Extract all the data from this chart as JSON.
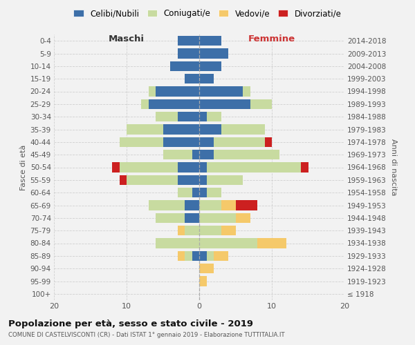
{
  "age_groups": [
    "100+",
    "95-99",
    "90-94",
    "85-89",
    "80-84",
    "75-79",
    "70-74",
    "65-69",
    "60-64",
    "55-59",
    "50-54",
    "45-49",
    "40-44",
    "35-39",
    "30-34",
    "25-29",
    "20-24",
    "15-19",
    "10-14",
    "5-9",
    "0-4"
  ],
  "birth_years": [
    "≤ 1918",
    "1919-1923",
    "1924-1928",
    "1929-1933",
    "1934-1938",
    "1939-1943",
    "1944-1948",
    "1949-1953",
    "1954-1958",
    "1959-1963",
    "1964-1968",
    "1969-1973",
    "1974-1978",
    "1979-1983",
    "1984-1988",
    "1989-1993",
    "1994-1998",
    "1999-2003",
    "2004-2008",
    "2009-2013",
    "2014-2018"
  ],
  "maschi_celibi": [
    0,
    0,
    0,
    1,
    0,
    0,
    2,
    2,
    1,
    3,
    3,
    1,
    5,
    5,
    3,
    7,
    6,
    2,
    4,
    3,
    3
  ],
  "maschi_coniugati": [
    0,
    0,
    0,
    1,
    6,
    2,
    4,
    5,
    2,
    7,
    8,
    4,
    6,
    5,
    3,
    1,
    1,
    0,
    0,
    0,
    0
  ],
  "maschi_vedovi": [
    0,
    0,
    0,
    1,
    0,
    1,
    0,
    0,
    0,
    0,
    0,
    0,
    0,
    0,
    0,
    0,
    0,
    0,
    0,
    0,
    0
  ],
  "maschi_divorziati": [
    0,
    0,
    0,
    0,
    0,
    0,
    0,
    0,
    0,
    1,
    1,
    0,
    0,
    0,
    0,
    0,
    0,
    0,
    0,
    0,
    0
  ],
  "femmine_celibi": [
    0,
    0,
    0,
    1,
    0,
    0,
    0,
    0,
    1,
    1,
    1,
    2,
    2,
    3,
    1,
    7,
    6,
    2,
    3,
    4,
    3
  ],
  "femmine_coniugati": [
    0,
    0,
    0,
    1,
    8,
    3,
    5,
    3,
    2,
    5,
    13,
    9,
    7,
    6,
    2,
    3,
    1,
    0,
    0,
    0,
    0
  ],
  "femmine_vedovi": [
    0,
    1,
    2,
    2,
    4,
    2,
    2,
    2,
    0,
    0,
    0,
    0,
    0,
    0,
    0,
    0,
    0,
    0,
    0,
    0,
    0
  ],
  "femmine_divorziati": [
    0,
    0,
    0,
    0,
    0,
    0,
    0,
    3,
    0,
    0,
    1,
    0,
    1,
    0,
    0,
    0,
    0,
    0,
    0,
    0,
    0
  ],
  "colors": {
    "celibi": "#3d6fa8",
    "coniugati": "#c8dba0",
    "vedovi": "#f5c96a",
    "divorziati": "#cc2020"
  },
  "legend_labels": [
    "Celibi/Nubili",
    "Coniugati/e",
    "Vedovi/e",
    "Divorziati/e"
  ],
  "header_left": "Maschi",
  "header_right": "Femmine",
  "ylabel_left": "Fasce di età",
  "ylabel_right": "Anni di nascita",
  "title": "Popolazione per età, sesso e stato civile - 2019",
  "subtitle": "COMUNE DI CASTELVISCONTI (CR) - Dati ISTAT 1° gennaio 2019 - Elaborazione TUTTITALIA.IT",
  "xlim": 20,
  "bg_color": "#f2f2f2",
  "grid_color": "#cccccc"
}
